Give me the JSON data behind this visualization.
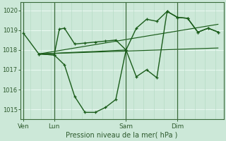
{
  "bg_color": "#cce8d8",
  "plot_bg_color": "#cce8d8",
  "line_color": "#1a5c1a",
  "grid_color": "#b0d8c0",
  "grid_color_white": "#e8f8f0",
  "ylabel_color": "#2d5a2d",
  "ylim": [
    1014.5,
    1020.4
  ],
  "yticks": [
    1015,
    1016,
    1017,
    1018,
    1019,
    1020
  ],
  "xlabel": "Pression niveau de la mer( hPa )",
  "day_labels": [
    "Ven",
    "Lun",
    "Sam",
    "Dim"
  ],
  "day_positions": [
    0,
    3,
    10,
    15
  ],
  "xlim": [
    -0.3,
    19.5
  ],
  "series_main_x": [
    0,
    1.5,
    3,
    3.5,
    4,
    5,
    6,
    7,
    8,
    9,
    10,
    11,
    12,
    13,
    14,
    15,
    16,
    17,
    18,
    19
  ],
  "series_main_y": [
    1018.85,
    1017.8,
    1017.75,
    1019.05,
    1019.1,
    1018.3,
    1018.35,
    1018.4,
    1018.45,
    1018.5,
    1018.0,
    1019.1,
    1019.55,
    1019.45,
    1019.95,
    1019.65,
    1019.6,
    1018.9,
    1019.1,
    1018.9
  ],
  "series_low_x": [
    1.5,
    3,
    4,
    5,
    6,
    7,
    8,
    9,
    10,
    11,
    12,
    13,
    14,
    15,
    16,
    17,
    18,
    19
  ],
  "series_low_y": [
    1017.8,
    1017.75,
    1017.25,
    1015.65,
    1014.85,
    1014.85,
    1015.1,
    1015.5,
    1018.0,
    1016.65,
    1017.0,
    1016.6,
    1019.95,
    1019.65,
    1019.6,
    1018.9,
    1019.1,
    1018.9
  ],
  "trend_lines": [
    {
      "x": [
        1.5,
        10
      ],
      "y": [
        1017.8,
        1018.0
      ]
    },
    {
      "x": [
        1.5,
        19
      ],
      "y": [
        1017.8,
        1019.3
      ]
    },
    {
      "x": [
        1.5,
        19
      ],
      "y": [
        1017.8,
        1018.1
      ]
    }
  ]
}
